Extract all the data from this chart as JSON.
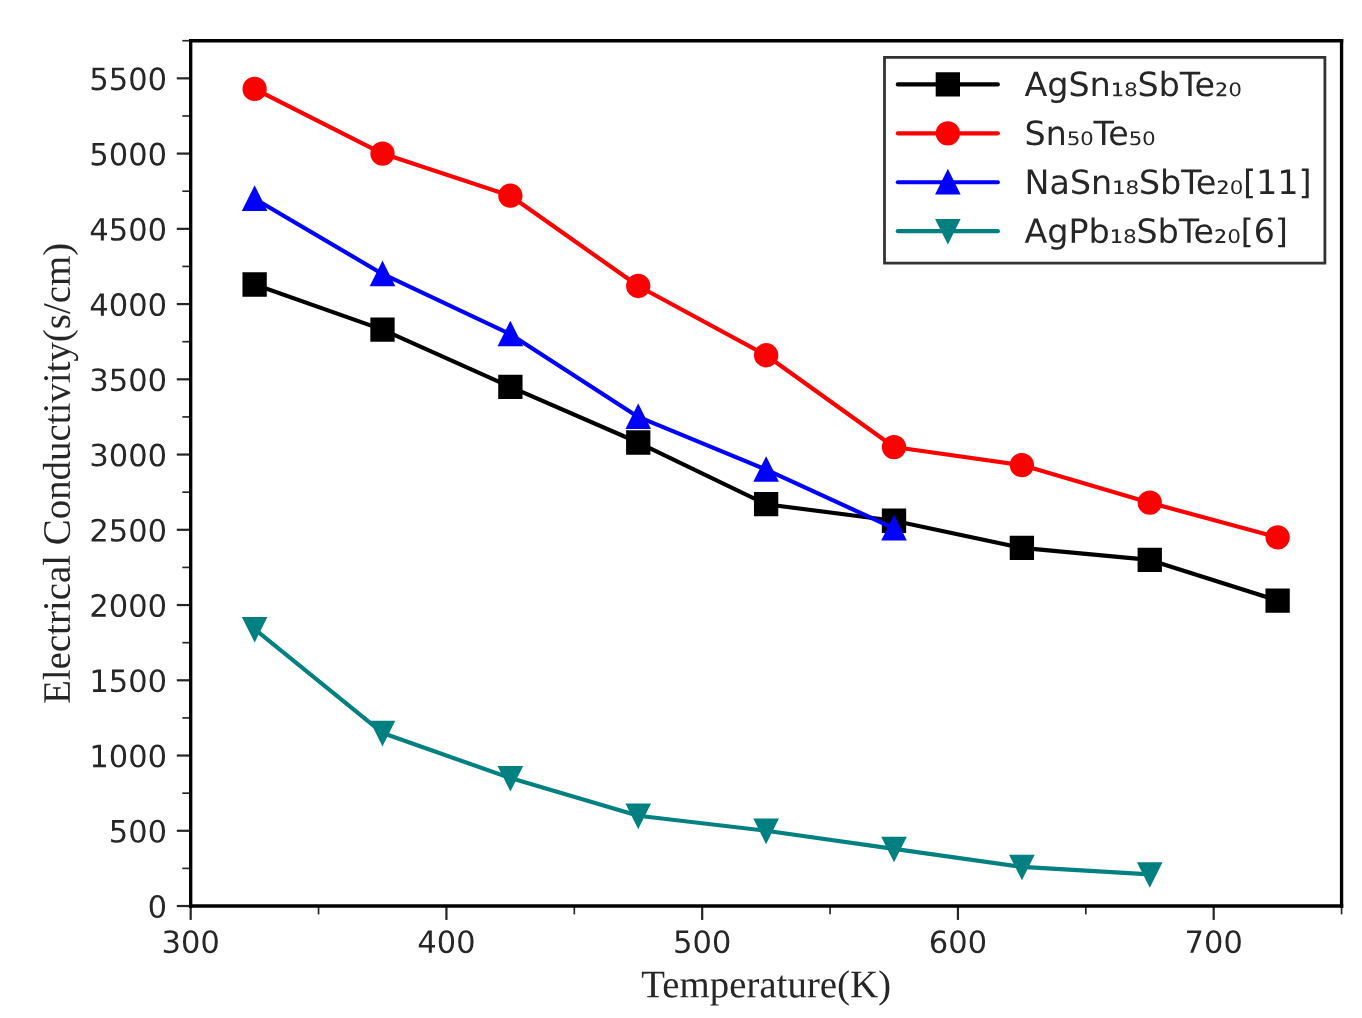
{
  "chart_data": {
    "type": "line",
    "xlabel": "Temperature(K)",
    "ylabel": "Electrical Conductivity(s/cm)",
    "x": [
      325,
      375,
      425,
      475,
      525,
      575,
      625,
      675,
      725
    ],
    "series": [
      {
        "name": "AgSn₁₈SbTe₂₀",
        "color": "#000000",
        "marker": "square",
        "values": [
          4130,
          3830,
          3450,
          3080,
          2670,
          2560,
          2380,
          2300,
          2030
        ]
      },
      {
        "name": "Sn₅₀Te₅₀",
        "color": "#ff0000",
        "marker": "circle",
        "values": [
          5430,
          5000,
          4720,
          4120,
          3660,
          3050,
          2930,
          2680,
          2450
        ]
      },
      {
        "name": "NaSn₁₈SbTe₂₀[11]",
        "color": "#0000ff",
        "marker": "triangle",
        "values": [
          4700,
          4200,
          3800,
          3250,
          2900,
          2510,
          null,
          null,
          null
        ]
      },
      {
        "name": "AgPb₁₈SbTe₂₀[6]",
        "color": "#008080",
        "marker": "triangle_down",
        "values": [
          1840,
          1150,
          850,
          600,
          500,
          380,
          260,
          210,
          null
        ]
      }
    ],
    "xlim": [
      300,
      750
    ],
    "xticks": [
      300,
      400,
      500,
      600,
      700
    ],
    "ylim": [
      0,
      5750
    ],
    "yticks": [
      0,
      500,
      1000,
      1500,
      2000,
      2500,
      3000,
      3500,
      4000,
      4500,
      5000,
      5500
    ],
    "grid": false,
    "legend": "top right",
    "line_style": "solid"
  }
}
